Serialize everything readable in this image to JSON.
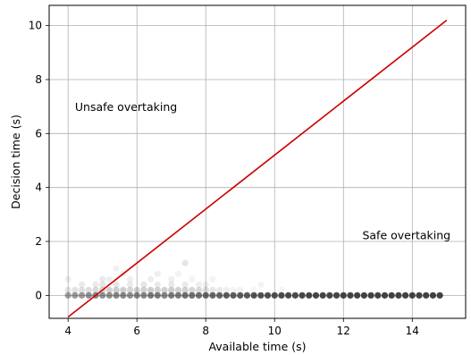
{
  "chart_data": {
    "type": "scatter",
    "xlabel": "Available time (s)",
    "ylabel": "Decision time (s)",
    "xlim": [
      3.45,
      15.55
    ],
    "ylim": [
      -0.85,
      10.75
    ],
    "xticks": [
      4,
      6,
      8,
      10,
      12,
      14
    ],
    "yticks": [
      0,
      2,
      4,
      6,
      8,
      10
    ],
    "grid": true,
    "annotations": [
      {
        "text": "Unsafe overtaking",
        "x": 4.2,
        "y": 7.0
      },
      {
        "text": "Safe overtaking",
        "x": 12.55,
        "y": 2.25
      }
    ],
    "threshold_line": {
      "color": "#cc0000",
      "points": [
        [
          4.0,
          -0.8
        ],
        [
          15.0,
          10.2
        ]
      ]
    },
    "point_color": "#333333",
    "points": [
      [
        4.0,
        0.0,
        0.45
      ],
      [
        4.2,
        0.0,
        0.5
      ],
      [
        4.4,
        0.0,
        0.5
      ],
      [
        4.6,
        0.0,
        0.55
      ],
      [
        4.8,
        0.0,
        0.6
      ],
      [
        5.0,
        0.0,
        0.55
      ],
      [
        5.2,
        0.0,
        0.55
      ],
      [
        5.4,
        0.0,
        0.6
      ],
      [
        5.6,
        0.0,
        0.6
      ],
      [
        5.8,
        0.0,
        0.55
      ],
      [
        6.0,
        0.0,
        0.6
      ],
      [
        6.2,
        0.0,
        0.6
      ],
      [
        6.4,
        0.0,
        0.65
      ],
      [
        6.6,
        0.0,
        0.65
      ],
      [
        6.8,
        0.0,
        0.6
      ],
      [
        7.0,
        0.0,
        0.65
      ],
      [
        7.2,
        0.0,
        0.65
      ],
      [
        7.4,
        0.0,
        0.7
      ],
      [
        7.6,
        0.0,
        0.7
      ],
      [
        7.8,
        0.0,
        0.7
      ],
      [
        8.0,
        0.0,
        0.75
      ],
      [
        8.2,
        0.0,
        0.75
      ],
      [
        8.4,
        0.0,
        0.75
      ],
      [
        8.6,
        0.0,
        0.8
      ],
      [
        8.8,
        0.0,
        0.8
      ],
      [
        9.0,
        0.0,
        0.8
      ],
      [
        9.2,
        0.0,
        0.8
      ],
      [
        9.4,
        0.0,
        0.85
      ],
      [
        9.6,
        0.0,
        0.85
      ],
      [
        9.8,
        0.0,
        0.85
      ],
      [
        10.0,
        0.0,
        0.85
      ],
      [
        10.2,
        0.0,
        0.88
      ],
      [
        10.4,
        0.0,
        0.88
      ],
      [
        10.6,
        0.0,
        0.88
      ],
      [
        10.8,
        0.0,
        0.9
      ],
      [
        11.0,
        0.0,
        0.9
      ],
      [
        11.2,
        0.0,
        0.9
      ],
      [
        11.4,
        0.0,
        0.9
      ],
      [
        11.6,
        0.0,
        0.9
      ],
      [
        11.8,
        0.0,
        0.9
      ],
      [
        12.0,
        0.0,
        0.92
      ],
      [
        12.2,
        0.0,
        0.92
      ],
      [
        12.4,
        0.0,
        0.92
      ],
      [
        12.6,
        0.0,
        0.92
      ],
      [
        12.8,
        0.0,
        0.92
      ],
      [
        13.0,
        0.0,
        0.92
      ],
      [
        13.2,
        0.0,
        0.92
      ],
      [
        13.4,
        0.0,
        0.92
      ],
      [
        13.6,
        0.0,
        0.92
      ],
      [
        13.8,
        0.0,
        0.92
      ],
      [
        14.0,
        0.0,
        0.92
      ],
      [
        14.2,
        0.0,
        0.92
      ],
      [
        14.4,
        0.0,
        0.92
      ],
      [
        14.6,
        0.0,
        0.92
      ],
      [
        14.8,
        0.0,
        0.92
      ],
      [
        4.0,
        0.2,
        0.12
      ],
      [
        4.2,
        0.2,
        0.14
      ],
      [
        4.4,
        0.2,
        0.14
      ],
      [
        4.6,
        0.2,
        0.16
      ],
      [
        4.8,
        0.2,
        0.18
      ],
      [
        5.0,
        0.2,
        0.2
      ],
      [
        5.2,
        0.2,
        0.22
      ],
      [
        5.4,
        0.2,
        0.24
      ],
      [
        5.6,
        0.2,
        0.24
      ],
      [
        5.8,
        0.2,
        0.2
      ],
      [
        6.0,
        0.2,
        0.22
      ],
      [
        6.2,
        0.2,
        0.22
      ],
      [
        6.4,
        0.2,
        0.24
      ],
      [
        6.6,
        0.2,
        0.22
      ],
      [
        6.8,
        0.2,
        0.22
      ],
      [
        7.0,
        0.2,
        0.24
      ],
      [
        7.2,
        0.2,
        0.22
      ],
      [
        7.4,
        0.2,
        0.22
      ],
      [
        7.6,
        0.2,
        0.2
      ],
      [
        7.8,
        0.2,
        0.18
      ],
      [
        8.0,
        0.2,
        0.16
      ],
      [
        8.2,
        0.2,
        0.12
      ],
      [
        8.4,
        0.2,
        0.1
      ],
      [
        8.6,
        0.2,
        0.08
      ],
      [
        8.8,
        0.2,
        0.06
      ],
      [
        9.0,
        0.2,
        0.06
      ],
      [
        9.4,
        0.2,
        0.05
      ],
      [
        10.2,
        0.2,
        0.05
      ],
      [
        4.4,
        0.4,
        0.1
      ],
      [
        4.8,
        0.4,
        0.1
      ],
      [
        5.0,
        0.4,
        0.12
      ],
      [
        5.4,
        0.4,
        0.12
      ],
      [
        5.8,
        0.4,
        0.1
      ],
      [
        6.2,
        0.4,
        0.12
      ],
      [
        6.6,
        0.4,
        0.1
      ],
      [
        7.0,
        0.4,
        0.1
      ],
      [
        7.4,
        0.4,
        0.1
      ],
      [
        7.8,
        0.4,
        0.08
      ],
      [
        8.0,
        0.4,
        0.08
      ],
      [
        9.6,
        0.4,
        0.06
      ],
      [
        4.0,
        0.6,
        0.08
      ],
      [
        5.0,
        0.6,
        0.1
      ],
      [
        5.2,
        0.6,
        0.08
      ],
      [
        5.8,
        0.6,
        0.08
      ],
      [
        6.4,
        0.6,
        0.08
      ],
      [
        7.0,
        0.6,
        0.08
      ],
      [
        7.6,
        0.6,
        0.06
      ],
      [
        8.2,
        0.6,
        0.06
      ],
      [
        5.6,
        0.8,
        0.08
      ],
      [
        6.6,
        0.8,
        0.08
      ],
      [
        7.2,
        0.8,
        0.06
      ],
      [
        5.4,
        1.0,
        0.07
      ],
      [
        7.4,
        1.2,
        0.12
      ]
    ]
  }
}
